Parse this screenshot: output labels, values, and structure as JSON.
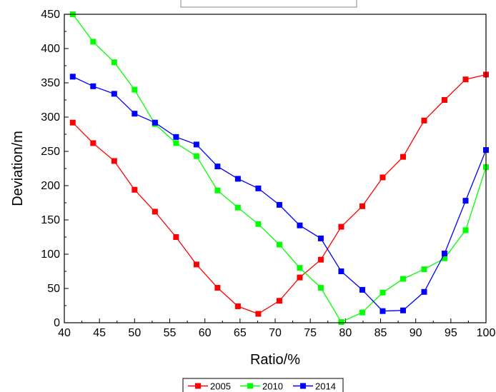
{
  "chart_data": {
    "type": "line",
    "xlabel": "Ratio/%",
    "ylabel": "Deviation/m",
    "xlim": [
      40,
      100
    ],
    "ylim": [
      0,
      450
    ],
    "xticks": [
      40,
      45,
      50,
      55,
      60,
      65,
      70,
      75,
      80,
      85,
      90,
      95,
      100
    ],
    "yticks": [
      0,
      50,
      100,
      150,
      200,
      250,
      300,
      350,
      400,
      450
    ],
    "grid": false,
    "legend_position": "bottom",
    "marker": "square",
    "series": [
      {
        "name": "2005",
        "color": "#ff0000",
        "points": [
          [
            41.2,
            292
          ],
          [
            44.1,
            262
          ],
          [
            47.1,
            236
          ],
          [
            50.0,
            194
          ],
          [
            52.9,
            162
          ],
          [
            55.9,
            125
          ],
          [
            58.8,
            85
          ],
          [
            61.8,
            51
          ],
          [
            64.7,
            24
          ],
          [
            67.6,
            13
          ],
          [
            70.6,
            32
          ],
          [
            73.5,
            66
          ],
          [
            76.5,
            92
          ],
          [
            79.4,
            140
          ],
          [
            82.4,
            170
          ],
          [
            85.3,
            212
          ],
          [
            88.2,
            242
          ],
          [
            91.2,
            295
          ],
          [
            94.1,
            325
          ],
          [
            97.1,
            355
          ],
          [
            100.0,
            362
          ]
        ]
      },
      {
        "name": "2010",
        "color": "#00ff00",
        "points": [
          [
            41.2,
            450
          ],
          [
            44.1,
            410
          ],
          [
            47.1,
            380
          ],
          [
            50.0,
            340
          ],
          [
            52.9,
            290
          ],
          [
            55.9,
            262
          ],
          [
            58.8,
            243
          ],
          [
            61.8,
            193
          ],
          [
            64.7,
            168
          ],
          [
            67.6,
            144
          ],
          [
            70.6,
            114
          ],
          [
            73.5,
            80
          ],
          [
            76.5,
            51
          ],
          [
            79.4,
            1
          ],
          [
            82.4,
            15
          ],
          [
            85.3,
            44
          ],
          [
            88.2,
            64
          ],
          [
            91.2,
            78
          ],
          [
            94.1,
            94
          ],
          [
            97.1,
            135
          ],
          [
            100.0,
            227
          ]
        ]
      },
      {
        "name": "2014",
        "color": "#0000ff",
        "points": [
          [
            41.2,
            359
          ],
          [
            44.1,
            345
          ],
          [
            47.1,
            334
          ],
          [
            50.0,
            305
          ],
          [
            52.9,
            292
          ],
          [
            55.9,
            271
          ],
          [
            58.8,
            260
          ],
          [
            61.8,
            228
          ],
          [
            64.7,
            210
          ],
          [
            67.6,
            196
          ],
          [
            70.6,
            172
          ],
          [
            73.5,
            142
          ],
          [
            76.5,
            123
          ],
          [
            79.4,
            75
          ],
          [
            82.4,
            48
          ],
          [
            85.3,
            17
          ],
          [
            88.2,
            18
          ],
          [
            91.2,
            45
          ],
          [
            94.1,
            101
          ],
          [
            97.1,
            178
          ],
          [
            100.0,
            252
          ]
        ]
      }
    ]
  }
}
